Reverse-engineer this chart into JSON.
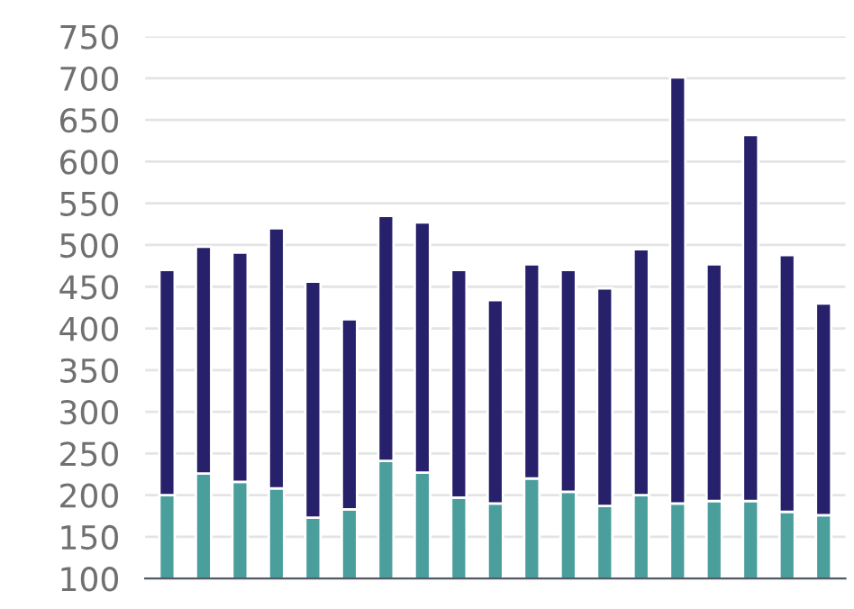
{
  "chart_data": {
    "type": "bar",
    "stacked": true,
    "categories": [
      null,
      null,
      null,
      null,
      null,
      null,
      null,
      null,
      null,
      null,
      null,
      null,
      null,
      null,
      null,
      null,
      null,
      null,
      null
    ],
    "series": [
      {
        "color": "#4a9e9c",
        "values": [
          200,
          226,
          216,
          208,
          173,
          183,
          241,
          227,
          197,
          190,
          220,
          204,
          187,
          200,
          190,
          193,
          193,
          180,
          176
        ]
      },
      {
        "color": "#27206b",
        "values": [
          270,
          272,
          275,
          312,
          283,
          228,
          294,
          300,
          273,
          244,
          257,
          266,
          261,
          295,
          511,
          284,
          439,
          308,
          254
        ]
      }
    ],
    "ylim": [
      100,
      750
    ],
    "yticks": [
      100,
      150,
      200,
      250,
      300,
      350,
      400,
      450,
      500,
      550,
      600,
      650,
      700,
      750
    ],
    "grid": "y",
    "legend": false
  }
}
